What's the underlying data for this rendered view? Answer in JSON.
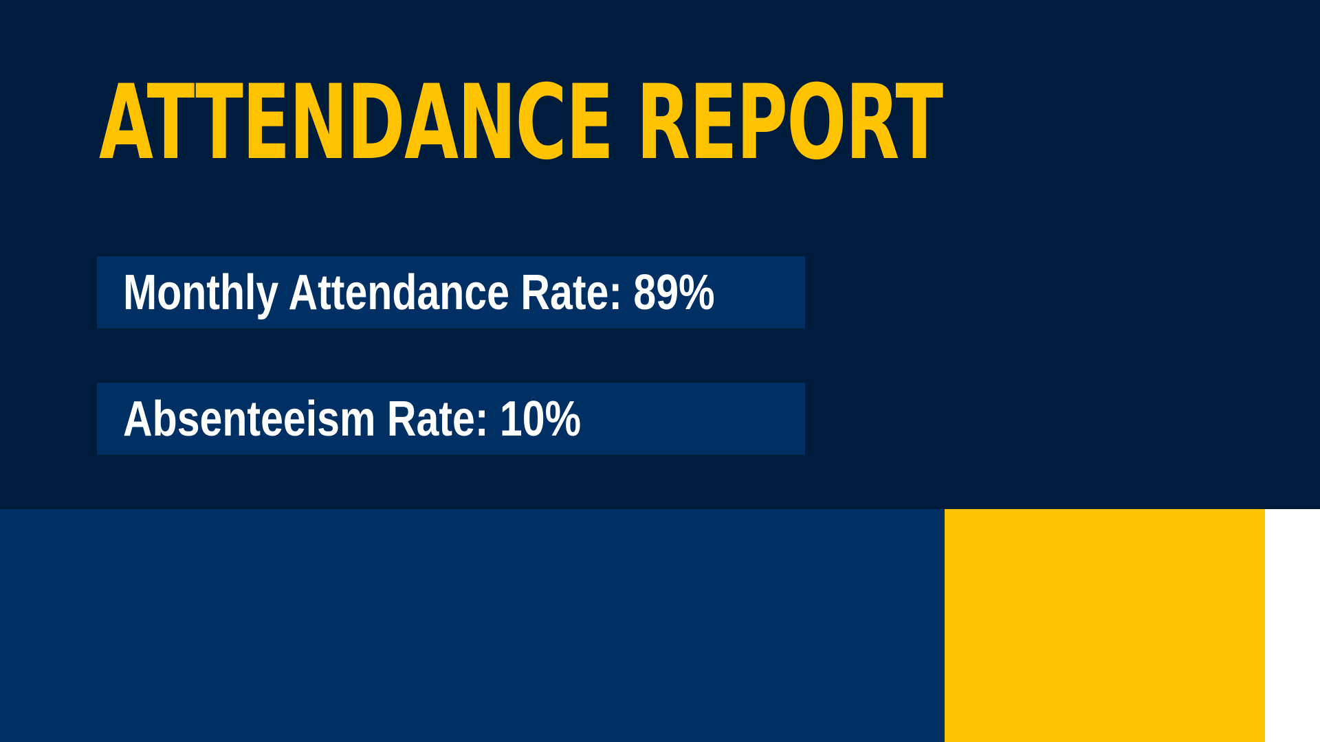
{
  "slide": {
    "title": "ATTENDANCE REPORT",
    "stats": [
      {
        "label": "Monthly Attendance Rate: 89%"
      },
      {
        "label": "Absenteeism Rate: 10%"
      }
    ]
  },
  "colors": {
    "background": "#001c3d",
    "panel": "#003063",
    "accent": "#ffc300",
    "text": "#ffffff",
    "white_block": "#ffffff"
  }
}
